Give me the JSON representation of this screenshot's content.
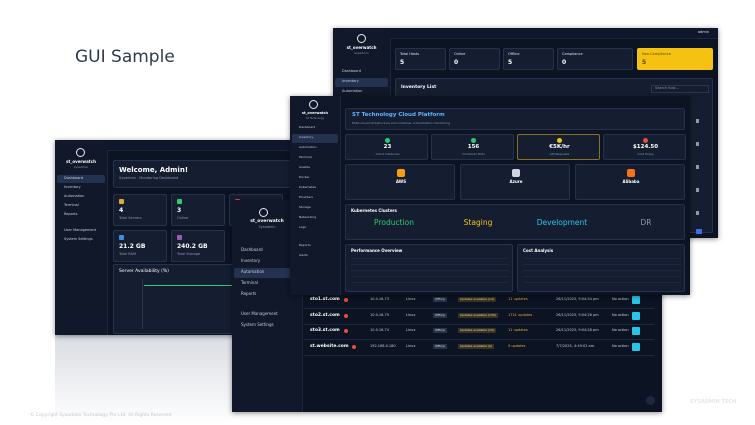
{
  "slide": {
    "title": "GUI Sample",
    "footer": "© Copyright Sysadmin Technology Pte Ltd. All Rights Reserved",
    "brand": "SYSADMIN TECH"
  },
  "dashboard": {
    "app": "st_overwatch",
    "role": "Sysadmin",
    "nav": [
      "Dashboard",
      "Inventory",
      "Automation",
      "Terminal",
      "Reports",
      "User Management",
      "System Settings"
    ],
    "welcome": "Welcome, Admin!",
    "subtitle": "Sysadmin · Monitoring Dashboard",
    "cards": [
      {
        "value": "4",
        "label": "Total Servers"
      },
      {
        "value": "3",
        "label": "Online"
      },
      {
        "value": "21.2 GB",
        "label": "Total RAM"
      },
      {
        "value": "240.2 GB",
        "label": "Total Storage"
      }
    ],
    "chart_title": "Server Availability (%)"
  },
  "automation": {
    "app": "st_overwatch",
    "role": "Sysadmin",
    "nav": [
      "Dashboard",
      "Inventory",
      "Automation",
      "Terminal",
      "Reports",
      "User Management",
      "System Settings"
    ],
    "rows": [
      [
        "sto1.st.com",
        "10.0.16.73",
        "Linux",
        "Offline",
        "Updates available (14)",
        "11 updates",
        "26/11/2025, 9:04:34 pm",
        "No action"
      ],
      [
        "sto2.st.com",
        "10.0.16.75",
        "Linux",
        "Offline",
        "Updates available (130)",
        "1721 updates",
        "26/11/2025, 9:04:26 pm",
        "No action"
      ],
      [
        "sto3.st.com",
        "10.0.16.74",
        "Linux",
        "Offline",
        "Updates available (10)",
        "11 updates",
        "26/11/2025, 9:04:28 pm",
        "No action"
      ],
      [
        "st.website.com",
        "192.168.0.180",
        "Linux",
        "Offline",
        "Updates available (9)",
        "9 updates",
        "7/7/2025, 4:49:02 am",
        "No action"
      ]
    ]
  },
  "inventory": {
    "app": "st_overwatch",
    "role": "Sysadmin",
    "nav": [
      "Dashboard",
      "Inventory",
      "Automation"
    ],
    "user": "admin",
    "stats": [
      {
        "label": "Total Hosts",
        "value": "5"
      },
      {
        "label": "Online",
        "value": "0"
      },
      {
        "label": "Offline",
        "value": "5"
      },
      {
        "label": "Compliance",
        "value": "0"
      },
      {
        "label": "Non-Compliance",
        "value": "5"
      }
    ],
    "list_title": "Inventory List",
    "search": "Search host..."
  },
  "cloud": {
    "app": "st_overwatch",
    "org": "ST Technology",
    "nav": [
      "Dashboard",
      "Inventory",
      "Automation",
      "Terminal",
      "Ansible",
      "Docker",
      "Kubernetes",
      "Providers",
      "Storage",
      "Networking",
      "Logs",
      "Reports",
      "Alerts"
    ],
    "title": "ST Technology Cloud Platform",
    "subtitle": "Multi-cloud infrastructure and container orchestration monitoring",
    "stats": [
      {
        "value": "23",
        "label": "Cloud Instances"
      },
      {
        "value": "156",
        "label": "Container Pods"
      },
      {
        "value": "€5K/hr",
        "label": "API Requests"
      },
      {
        "value": "$124.50",
        "label": "Cost Today"
      }
    ],
    "providers": [
      "AWS",
      "Azure",
      "Alibaba"
    ],
    "clusters_title": "Kubernetes Clusters",
    "clusters": [
      "Production",
      "Staging",
      "Development",
      "DR"
    ],
    "perf_title": "Performance Overview",
    "cost_title": "Cost Analysis"
  }
}
